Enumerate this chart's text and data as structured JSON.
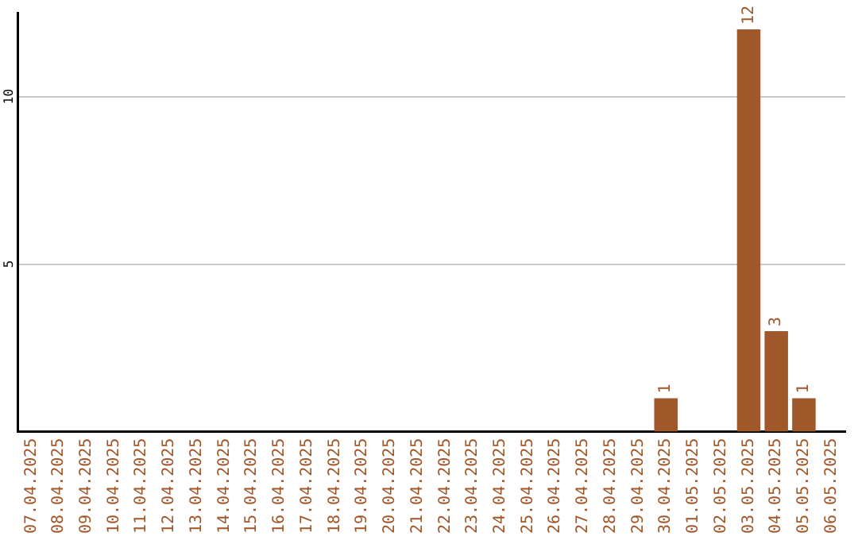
{
  "chart_data": {
    "type": "bar",
    "categories": [
      "07.04.2025",
      "08.04.2025",
      "09.04.2025",
      "10.04.2025",
      "11.04.2025",
      "12.04.2025",
      "13.04.2025",
      "14.04.2025",
      "15.04.2025",
      "16.04.2025",
      "17.04.2025",
      "18.04.2025",
      "19.04.2025",
      "20.04.2025",
      "21.04.2025",
      "22.04.2025",
      "23.04.2025",
      "24.04.2025",
      "25.04.2025",
      "26.04.2025",
      "27.04.2025",
      "28.04.2025",
      "29.04.2025",
      "30.04.2025",
      "01.05.2025",
      "02.05.2025",
      "03.05.2025",
      "04.05.2025",
      "05.05.2025",
      "06.05.2025"
    ],
    "values": [
      0,
      0,
      0,
      0,
      0,
      0,
      0,
      0,
      0,
      0,
      0,
      0,
      0,
      0,
      0,
      0,
      0,
      0,
      0,
      0,
      0,
      0,
      0,
      1,
      0,
      0,
      12,
      3,
      1,
      0
    ],
    "value_labels": [
      null,
      null,
      null,
      null,
      null,
      null,
      null,
      null,
      null,
      null,
      null,
      null,
      null,
      null,
      null,
      null,
      null,
      null,
      null,
      null,
      null,
      null,
      null,
      "1",
      null,
      null,
      "12",
      "3",
      "1",
      null
    ],
    "color": "#a0572a",
    "ylim": [
      0,
      12.5
    ],
    "yticks": [
      5,
      10
    ],
    "grid": "y",
    "legend": false
  }
}
